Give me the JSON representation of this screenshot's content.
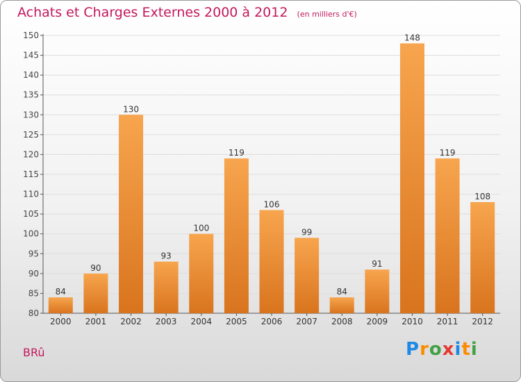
{
  "title": "Achats et Charges Externes 2000 à 2012",
  "unit_label": "(en milliers d'€)",
  "commune": "BRû",
  "logo": {
    "letters": [
      "P",
      "r",
      "o",
      "x",
      "i",
      "t",
      "i"
    ],
    "colors": [
      "#1e88e5",
      "#fb8c00",
      "#43a047",
      "#e53935",
      "#1e88e5",
      "#fb8c00",
      "#43a047"
    ]
  },
  "colors": {
    "bar_light": "#f7a54e",
    "bar_dark": "#d9741e",
    "title": "#c2185b",
    "grid": "#dddddd"
  },
  "chart_data": {
    "type": "bar",
    "title": "Achats et Charges Externes 2000 à 2012",
    "categories": [
      "2000",
      "2001",
      "2002",
      "2003",
      "2004",
      "2005",
      "2006",
      "2007",
      "2008",
      "2009",
      "2010",
      "2011",
      "2012"
    ],
    "values": [
      84,
      90,
      130,
      93,
      100,
      119,
      106,
      99,
      84,
      91,
      148,
      119,
      108
    ],
    "ylim": [
      80,
      150
    ],
    "yticks": [
      80,
      85,
      90,
      95,
      100,
      105,
      110,
      115,
      120,
      125,
      130,
      135,
      140,
      145,
      150
    ],
    "grid": true,
    "xlabel": "",
    "ylabel": ""
  }
}
